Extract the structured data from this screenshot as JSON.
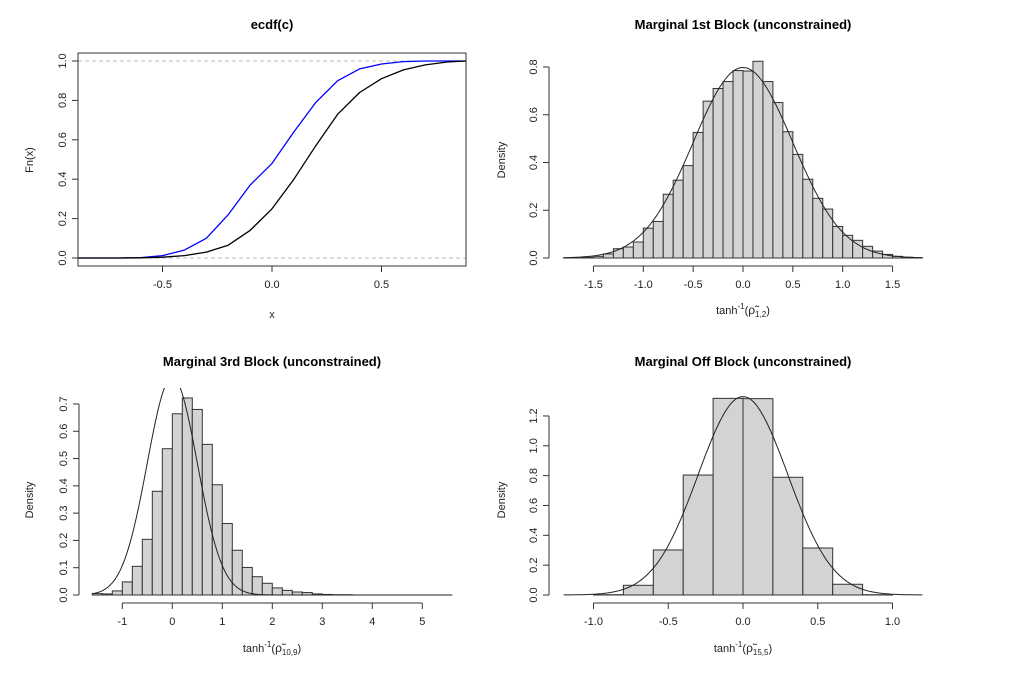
{
  "chart_data": [
    {
      "type": "line",
      "title": "ecdf(c)",
      "xlabel": {
        "base": "x"
      },
      "ylabel": "Fn(x)",
      "xlim": [
        -0.85,
        0.85
      ],
      "ylim": [
        0,
        1
      ],
      "xticks": [
        "-0.5",
        "0.0",
        "0.5"
      ],
      "yticks": [
        "0.0",
        "0.2",
        "0.4",
        "0.6",
        "0.8",
        "1.0"
      ],
      "reference_lines": [
        0,
        1
      ],
      "series": [
        {
          "name": "ecdf-blue",
          "color": "#0000ff",
          "x": [
            -0.886,
            -0.7,
            -0.6,
            -0.5,
            -0.4,
            -0.3,
            -0.2,
            -0.1,
            0.0,
            0.1,
            0.2,
            0.3,
            0.4,
            0.5,
            0.6,
            0.7,
            0.886
          ],
          "y": [
            0,
            0,
            0.002,
            0.012,
            0.04,
            0.1,
            0.22,
            0.37,
            0.48,
            0.64,
            0.79,
            0.9,
            0.96,
            0.985,
            0.997,
            1,
            1
          ]
        },
        {
          "name": "ecdf-black",
          "color": "#000000",
          "x": [
            -0.886,
            -0.7,
            -0.6,
            -0.5,
            -0.4,
            -0.3,
            -0.2,
            -0.1,
            0.0,
            0.1,
            0.2,
            0.3,
            0.4,
            0.5,
            0.6,
            0.7,
            0.8,
            0.886
          ],
          "y": [
            0,
            0,
            0.001,
            0.004,
            0.012,
            0.03,
            0.065,
            0.14,
            0.25,
            0.4,
            0.57,
            0.73,
            0.84,
            0.91,
            0.955,
            0.98,
            0.995,
            1
          ]
        }
      ]
    },
    {
      "type": "bar",
      "title": "Marginal 1st Block (unconstrained)",
      "xlabel": {
        "base": "tanh",
        "sup": "-1",
        "sym": "ρ̃",
        "sub": "1,2"
      },
      "ylabel": "Density",
      "xlim": [
        -1.8,
        1.8
      ],
      "ylim": [
        0,
        0.8
      ],
      "xticks": [
        "-1.5",
        "-1.0",
        "-0.5",
        "0.0",
        "0.5",
        "1.0",
        "1.5"
      ],
      "yticks": [
        "0.0",
        "0.2",
        "0.4",
        "0.6",
        "0.8"
      ],
      "bin_start": -1.8,
      "bin_width": 0.1,
      "values": [
        0.001,
        0.002,
        0.003,
        0.007,
        0.017,
        0.039,
        0.046,
        0.067,
        0.125,
        0.153,
        0.267,
        0.326,
        0.387,
        0.526,
        0.657,
        0.71,
        0.739,
        0.785,
        0.783,
        0.824,
        0.739,
        0.651,
        0.529,
        0.434,
        0.33,
        0.25,
        0.205,
        0.132,
        0.095,
        0.074,
        0.049,
        0.029,
        0.015,
        0.007,
        0.003,
        0.001
      ],
      "overlay": {
        "type": "normal",
        "mean": 0,
        "sd": 0.5
      }
    },
    {
      "type": "bar",
      "title": "Marginal 3rd Block (unconstrained)",
      "xlabel": {
        "base": "tanh",
        "sup": "-1",
        "sym": "ρ̃",
        "sub": "10,9"
      },
      "ylabel": "Density",
      "xlim": [
        -1.6,
        5.6
      ],
      "ylim": [
        0,
        0.72
      ],
      "xticks": [
        "-1",
        "0",
        "1",
        "2",
        "3",
        "4",
        "5"
      ],
      "yticks": [
        "0.0",
        "0.1",
        "0.2",
        "0.3",
        "0.4",
        "0.5",
        "0.6",
        "0.7"
      ],
      "bin_start": -1.6,
      "bin_width": 0.2,
      "values": [
        0.005,
        0.004,
        0.015,
        0.048,
        0.105,
        0.204,
        0.38,
        0.536,
        0.664,
        0.722,
        0.68,
        0.552,
        0.404,
        0.262,
        0.164,
        0.101,
        0.067,
        0.043,
        0.026,
        0.017,
        0.011,
        0.009,
        0.004,
        0.002,
        0.001,
        0.001,
        0,
        0,
        0,
        0,
        0,
        0,
        0,
        0,
        0,
        0
      ],
      "overlay": {
        "type": "normal",
        "mean": 0,
        "sd": 0.5
      }
    },
    {
      "type": "bar",
      "title": "Marginal Off Block (unconstrained)",
      "xlabel": {
        "base": "tanh",
        "sup": "-1",
        "sym": "ρ̃",
        "sub": "15,5"
      },
      "ylabel": "Density",
      "xlim": [
        -1.2,
        1.2
      ],
      "ylim": [
        0,
        1.32
      ],
      "xticks": [
        "-1.0",
        "-0.5",
        "0.0",
        "0.5",
        "1.0"
      ],
      "yticks": [
        "0.0",
        "0.2",
        "0.4",
        "0.6",
        "0.8",
        "1.0",
        "1.2"
      ],
      "bin_start": -1.2,
      "bin_width": 0.2,
      "values": [
        0,
        0.002,
        0.065,
        0.302,
        0.804,
        1.318,
        1.316,
        0.789,
        0.315,
        0.072,
        0.002,
        0
      ],
      "overlay": {
        "type": "normal",
        "mean": 0,
        "sd": 0.3
      }
    }
  ]
}
